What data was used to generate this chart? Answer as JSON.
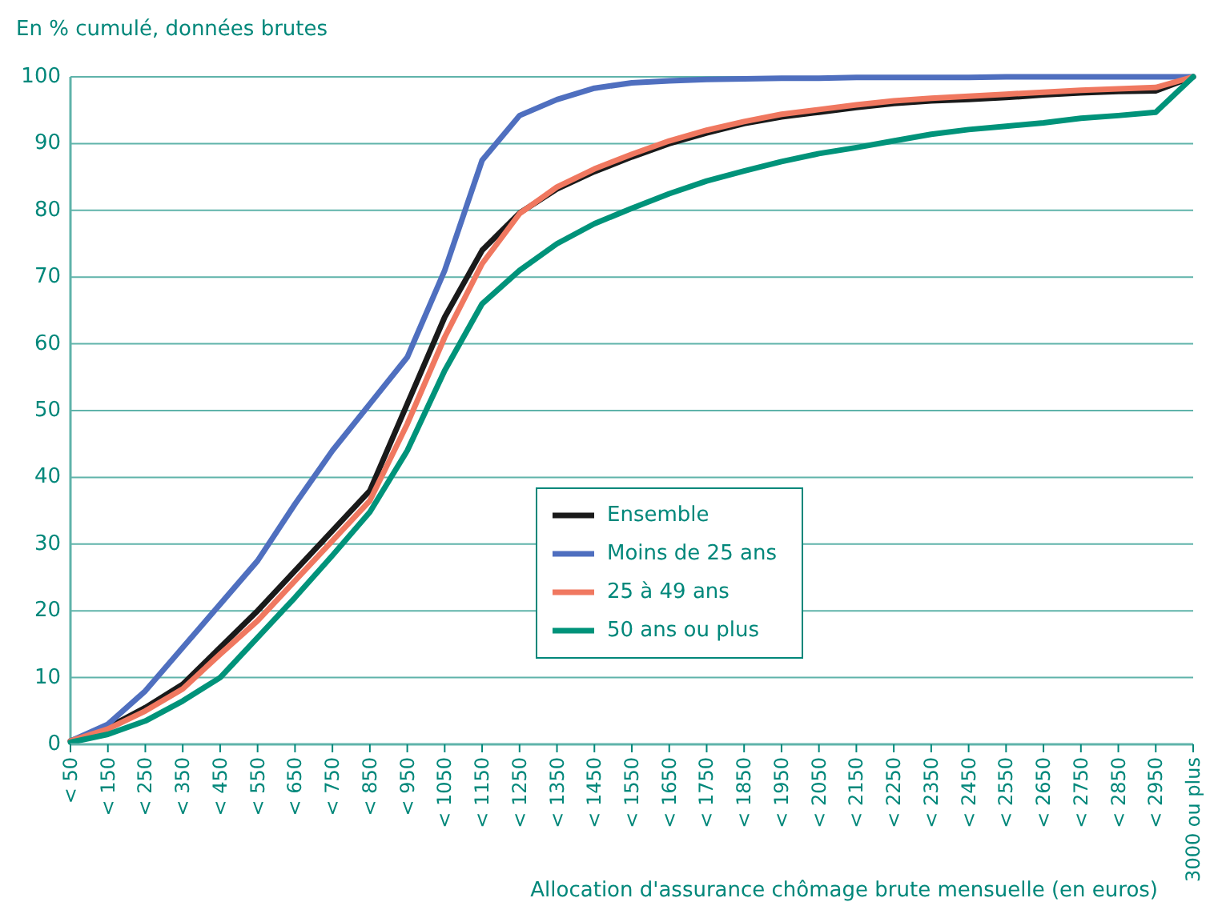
{
  "chart_data": {
    "type": "line",
    "ylabel": "En % cumulé, données brutes",
    "xlabel": "Allocation d'assurance chômage brute mensuelle (en euros)",
    "categories": [
      "< 50",
      "< 150",
      "< 250",
      "< 350",
      "< 450",
      "< 550",
      "< 650",
      "< 750",
      "< 850",
      "< 950",
      "< 1050",
      "< 1150",
      "< 1250",
      "< 1350",
      "< 1450",
      "< 1550",
      "< 1650",
      "< 1750",
      "< 1850",
      "< 1950",
      "< 2050",
      "< 2150",
      "< 2250",
      "< 2350",
      "< 2450",
      "< 2550",
      "< 2650",
      "< 2750",
      "< 2850",
      "< 2950",
      "3000 ou plus"
    ],
    "series": [
      {
        "name": "Ensemble",
        "color": "#1a1a1a",
        "values": [
          0.5,
          2.5,
          5.5,
          9,
          14.5,
          20,
          26,
          32,
          38,
          51,
          64,
          74,
          79.6,
          83.2,
          85.8,
          88,
          90,
          91.6,
          93,
          94,
          94.7,
          95.4,
          96,
          96.4,
          96.6,
          96.9,
          97.3,
          97.6,
          97.8,
          97.9,
          100
        ]
      },
      {
        "name": "Moins de 25 ans",
        "color": "#4f6fbf",
        "values": [
          0.5,
          3,
          8,
          14.5,
          21,
          27.5,
          36,
          44,
          51,
          58,
          71,
          87.5,
          94.2,
          96.6,
          98.3,
          99.1,
          99.4,
          99.6,
          99.7,
          99.8,
          99.8,
          99.9,
          99.9,
          99.9,
          99.9,
          100,
          100,
          100,
          100,
          100,
          100
        ]
      },
      {
        "name": "25 à 49 ans",
        "color": "#f07860",
        "values": [
          0.5,
          2.3,
          5,
          8.3,
          13.5,
          18.5,
          24.5,
          30.5,
          36.5,
          48,
          61,
          72,
          79.5,
          83.5,
          86.2,
          88.4,
          90.4,
          92,
          93.3,
          94.4,
          95.1,
          95.8,
          96.4,
          96.8,
          97.1,
          97.4,
          97.7,
          98,
          98.2,
          98.4,
          100
        ]
      },
      {
        "name": "50 ans ou plus",
        "color": "#00937a",
        "values": [
          0.3,
          1.5,
          3.5,
          6.5,
          10,
          16,
          22,
          28.3,
          34.8,
          44,
          56,
          66,
          71,
          75,
          78,
          80.3,
          82.5,
          84.4,
          85.9,
          87.3,
          88.5,
          89.4,
          90.4,
          91.4,
          92.1,
          92.6,
          93.1,
          93.8,
          94.2,
          94.7,
          100
        ]
      }
    ],
    "ylim": [
      0,
      100
    ],
    "yticks": [
      0,
      10,
      20,
      30,
      40,
      50,
      60,
      70,
      80,
      90,
      100
    ],
    "grid": "y",
    "legend": "center",
    "marker": "none",
    "line_style": "solid"
  }
}
